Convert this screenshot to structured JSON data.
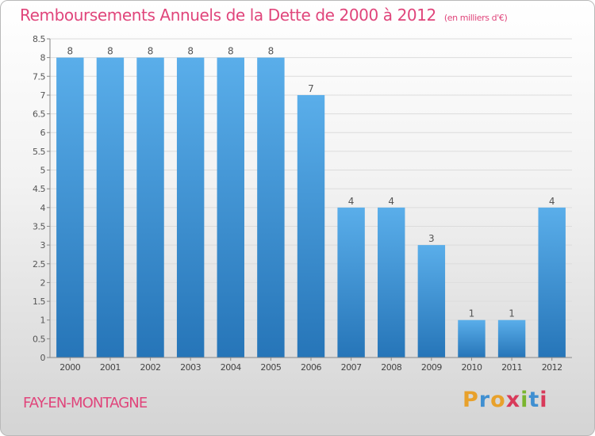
{
  "title": "Remboursements Annuels de la Dette de 2000 à 2012",
  "subtitle": "(en milliers d'€)",
  "city": "FAY-EN-MONTAGNE",
  "logo": {
    "letters": [
      "P",
      "r",
      "o",
      "x",
      "i",
      "t",
      "i"
    ],
    "colors": [
      "#e8a12b",
      "#3f8fd1",
      "#e8a12b",
      "#d83a5a",
      "#7ab52f",
      "#3f8fd1",
      "#d83a5a"
    ]
  },
  "colors": {
    "title": "#e0457b",
    "bar_light": "#5aaeea",
    "bar_dark": "#2675b8"
  },
  "chart_data": {
    "type": "bar",
    "title": "Remboursements Annuels de la Dette de 2000 à 2012",
    "subtitle": "(en milliers d'€)",
    "categories": [
      "2000",
      "2001",
      "2002",
      "2003",
      "2004",
      "2005",
      "2006",
      "2007",
      "2008",
      "2009",
      "2010",
      "2011",
      "2012"
    ],
    "values": [
      8,
      8,
      8,
      8,
      8,
      8,
      7,
      4,
      4,
      3,
      1,
      1,
      4
    ],
    "data_labels": [
      "8",
      "8",
      "8",
      "8",
      "8",
      "8",
      "7",
      "4",
      "4",
      "3",
      "1",
      "1",
      "4"
    ],
    "ylim": [
      0,
      8.5
    ],
    "yticks": [
      0,
      0.5,
      1,
      1.5,
      2,
      2.5,
      3,
      3.5,
      4,
      4.5,
      5,
      5.5,
      6,
      6.5,
      7,
      7.5,
      8,
      8.5
    ],
    "ytick_labels": [
      "0",
      "0.5",
      "1",
      "1.5",
      "2",
      "2.5",
      "3",
      "3.5",
      "4",
      "4.5",
      "5",
      "5.5",
      "6",
      "6.5",
      "7",
      "7.5",
      "8",
      "8.5"
    ],
    "grid": true,
    "xlabel": "",
    "ylabel": ""
  }
}
